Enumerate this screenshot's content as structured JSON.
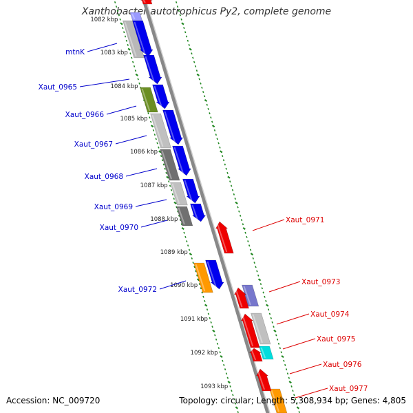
{
  "title": "Xanthobacter autotrophicus Py2, complete genome",
  "accession": "Accession: NC_009720",
  "summary": "Topology: circular; Length: 5,308,934 bp; Genes: 4,805",
  "colors": {
    "forward_cds": "#0000ee",
    "reverse_cds": "#ee0000",
    "left_label": "#0000cc",
    "right_label": "#dd0000",
    "tick": "#228822",
    "backbone": "#888888"
  },
  "scale_ticks": [
    "1082 kbp",
    "1083 kbp",
    "1084 kbp",
    "1085 kbp",
    "1086 kbp",
    "1087 kbp",
    "1088 kbp",
    "1089 kbp",
    "1090 kbp",
    "1091 kbp",
    "1092 kbp",
    "1093 kbp"
  ],
  "left_genes": [
    "mtnK",
    "Xaut_0965",
    "Xaut_0966",
    "Xaut_0967",
    "Xaut_0968",
    "Xaut_0969",
    "Xaut_0970",
    "Xaut_0972"
  ],
  "right_genes": [
    "Xaut_0971",
    "Xaut_0973",
    "Xaut_0974",
    "Xaut_0975",
    "Xaut_0976",
    "Xaut_0977"
  ]
}
